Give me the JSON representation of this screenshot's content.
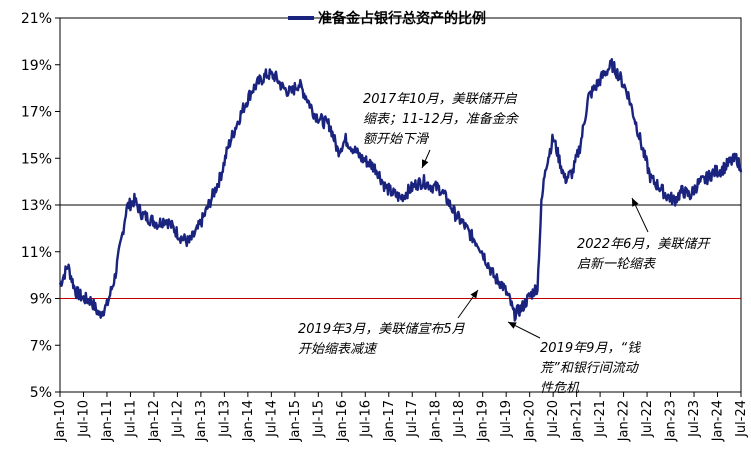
{
  "chart_data": {
    "type": "line",
    "title": "",
    "xlabel": "",
    "ylabel": "",
    "series": [
      {
        "name": "准备金占银行总资产的比例",
        "color": "#1a237e",
        "points": [
          [
            "2010-01",
            9.6
          ],
          [
            "2010-03",
            10.4
          ],
          [
            "2010-05",
            9.3
          ],
          [
            "2010-07",
            9.0
          ],
          [
            "2010-09",
            8.9
          ],
          [
            "2010-11",
            8.3
          ],
          [
            "2011-01",
            8.7
          ],
          [
            "2011-03",
            9.9
          ],
          [
            "2011-05",
            11.8
          ],
          [
            "2011-06",
            12.9
          ],
          [
            "2011-08",
            13.2
          ],
          [
            "2011-10",
            12.6
          ],
          [
            "2011-12",
            12.4
          ],
          [
            "2012-02",
            12.2
          ],
          [
            "2012-04",
            12.4
          ],
          [
            "2012-06",
            12.0
          ],
          [
            "2012-08",
            11.6
          ],
          [
            "2012-10",
            11.4
          ],
          [
            "2012-12",
            11.9
          ],
          [
            "2013-02",
            12.6
          ],
          [
            "2013-04",
            13.4
          ],
          [
            "2013-06",
            14.2
          ],
          [
            "2013-08",
            15.5
          ],
          [
            "2013-10",
            16.4
          ],
          [
            "2013-12",
            17.2
          ],
          [
            "2014-02",
            17.9
          ],
          [
            "2014-04",
            18.3
          ],
          [
            "2014-06",
            18.6
          ],
          [
            "2014-08",
            18.5
          ],
          [
            "2014-10",
            18.0
          ],
          [
            "2014-12",
            17.8
          ],
          [
            "2015-02",
            18.2
          ],
          [
            "2015-04",
            17.6
          ],
          [
            "2015-06",
            16.9
          ],
          [
            "2015-08",
            16.6
          ],
          [
            "2015-10",
            16.4
          ],
          [
            "2015-12",
            15.3
          ],
          [
            "2016-02",
            15.8
          ],
          [
            "2016-04",
            15.4
          ],
          [
            "2016-06",
            15.0
          ],
          [
            "2016-08",
            14.8
          ],
          [
            "2016-10",
            14.5
          ],
          [
            "2016-12",
            13.8
          ],
          [
            "2017-02",
            13.5
          ],
          [
            "2017-04",
            13.3
          ],
          [
            "2017-06",
            13.6
          ],
          [
            "2017-08",
            13.9
          ],
          [
            "2017-10",
            14.0
          ],
          [
            "2017-12",
            13.8
          ],
          [
            "2018-02",
            13.7
          ],
          [
            "2018-04",
            13.2
          ],
          [
            "2018-06",
            12.6
          ],
          [
            "2018-08",
            12.2
          ],
          [
            "2018-10",
            11.7
          ],
          [
            "2018-12",
            11.3
          ],
          [
            "2019-02",
            10.6
          ],
          [
            "2019-04",
            9.9
          ],
          [
            "2019-06",
            9.6
          ],
          [
            "2019-08",
            8.9
          ],
          [
            "2019-09",
            8.3
          ],
          [
            "2019-11",
            8.6
          ],
          [
            "2020-01",
            9.1
          ],
          [
            "2020-03",
            9.5
          ],
          [
            "2020-04",
            13.0
          ],
          [
            "2020-05",
            14.6
          ],
          [
            "2020-06",
            15.2
          ],
          [
            "2020-07",
            15.9
          ],
          [
            "2020-08",
            15.3
          ],
          [
            "2020-10",
            14.1
          ],
          [
            "2020-12",
            14.4
          ],
          [
            "2021-02",
            15.6
          ],
          [
            "2021-04",
            17.6
          ],
          [
            "2021-06",
            18.1
          ],
          [
            "2021-08",
            18.6
          ],
          [
            "2021-10",
            19.0
          ],
          [
            "2021-12",
            18.5
          ],
          [
            "2022-02",
            17.8
          ],
          [
            "2022-04",
            16.6
          ],
          [
            "2022-06",
            15.3
          ],
          [
            "2022-08",
            14.1
          ],
          [
            "2022-10",
            13.8
          ],
          [
            "2022-12",
            13.4
          ],
          [
            "2023-02",
            13.2
          ],
          [
            "2023-04",
            13.6
          ],
          [
            "2023-06",
            13.4
          ],
          [
            "2023-08",
            13.9
          ],
          [
            "2023-10",
            14.1
          ],
          [
            "2023-12",
            14.4
          ],
          [
            "2024-02",
            14.5
          ],
          [
            "2024-04",
            14.8
          ],
          [
            "2024-06",
            15.0
          ],
          [
            "2024-07",
            14.4
          ]
        ]
      }
    ],
    "y_range": [
      5,
      21
    ],
    "y_ticks": [
      5,
      7,
      9,
      11,
      13,
      15,
      17,
      19,
      21
    ],
    "y_tick_labels": [
      "5%",
      "7%",
      "9%",
      "11%",
      "13%",
      "15%",
      "17%",
      "19%",
      "21%"
    ],
    "x_range": [
      "2010-01",
      "2024-07"
    ],
    "x_ticks": [
      "Jan-10",
      "Jul-10",
      "Jan-11",
      "Jul-11",
      "Jan-12",
      "Jul-12",
      "Jan-13",
      "Jul-13",
      "Jan-14",
      "Jul-14",
      "Jan-15",
      "Jul-15",
      "Jan-16",
      "Jul-16",
      "Jan-17",
      "Jul-17",
      "Jan-18",
      "Jul-18",
      "Jan-19",
      "Jul-19",
      "Jan-20",
      "Jul-20",
      "Jan-21",
      "Jul-21",
      "Jan-22",
      "Jul-22",
      "Jan-23",
      "Jul-23",
      "Jan-24",
      "Jul-24"
    ],
    "reference_lines": [
      {
        "value": 13,
        "color": "#000000"
      },
      {
        "value": 9,
        "color": "#c00000"
      }
    ],
    "grid": false,
    "legend_position": "top-center",
    "annotations": [
      {
        "date": "2017-10",
        "y": 14.0,
        "lines": [
          "2017年10月，美联储开启",
          "缩表；11-12月，准备金余",
          "额开始下滑"
        ],
        "align": "above"
      },
      {
        "date": "2019-03",
        "y": 9.7,
        "lines": [
          "2019年3月，美联储宣布5月",
          "开始缩表减速"
        ],
        "align": "below"
      },
      {
        "date": "2019-09",
        "y": 8.0,
        "lines": [
          "2019年9月，“钱",
          "荒”和银行间流动",
          "性危机"
        ],
        "align": "below"
      },
      {
        "date": "2022-06",
        "y": 13.5,
        "lines": [
          "2022年6月，美联储开",
          "启新一轮缩表"
        ],
        "align": "below"
      }
    ]
  }
}
